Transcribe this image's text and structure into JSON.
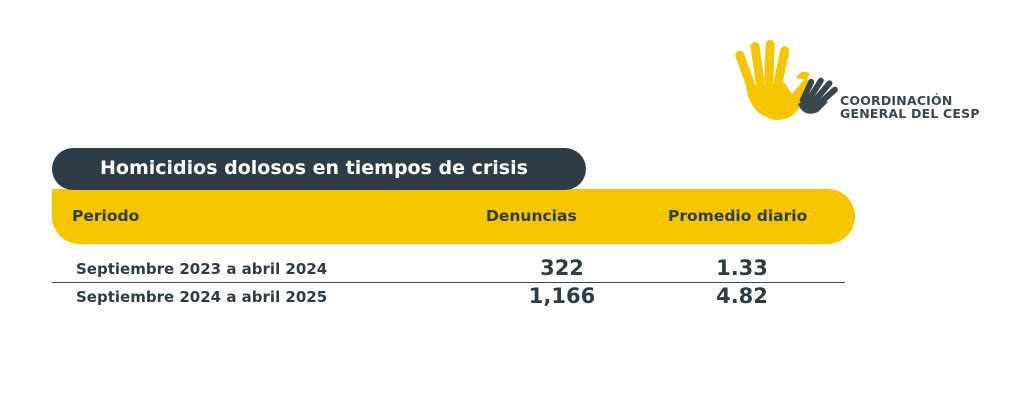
{
  "logo": {
    "line1": "COORDINACIÓN",
    "line2": "GENERAL DEL CESP",
    "icon": "hands-dove-icon",
    "colors": {
      "yellow": "#f5c500",
      "dark": "#3a4650"
    }
  },
  "table": {
    "title": "Homicidios dolosos en tiempos de crisis",
    "headers": {
      "period": "Periodo",
      "complaints": "Denuncias",
      "daily_avg": "Promedio diario"
    },
    "rows": [
      {
        "period": "Septiembre 2023 a abril 2024",
        "complaints": "322",
        "daily_avg": "1.33"
      },
      {
        "period": "Septiembre 2024 a abril 2025",
        "complaints": "1,166",
        "daily_avg": "4.82"
      }
    ],
    "colors": {
      "title_bg": "#2f3c46",
      "header_bg": "#f5c500",
      "text": "#2f3c46"
    }
  }
}
